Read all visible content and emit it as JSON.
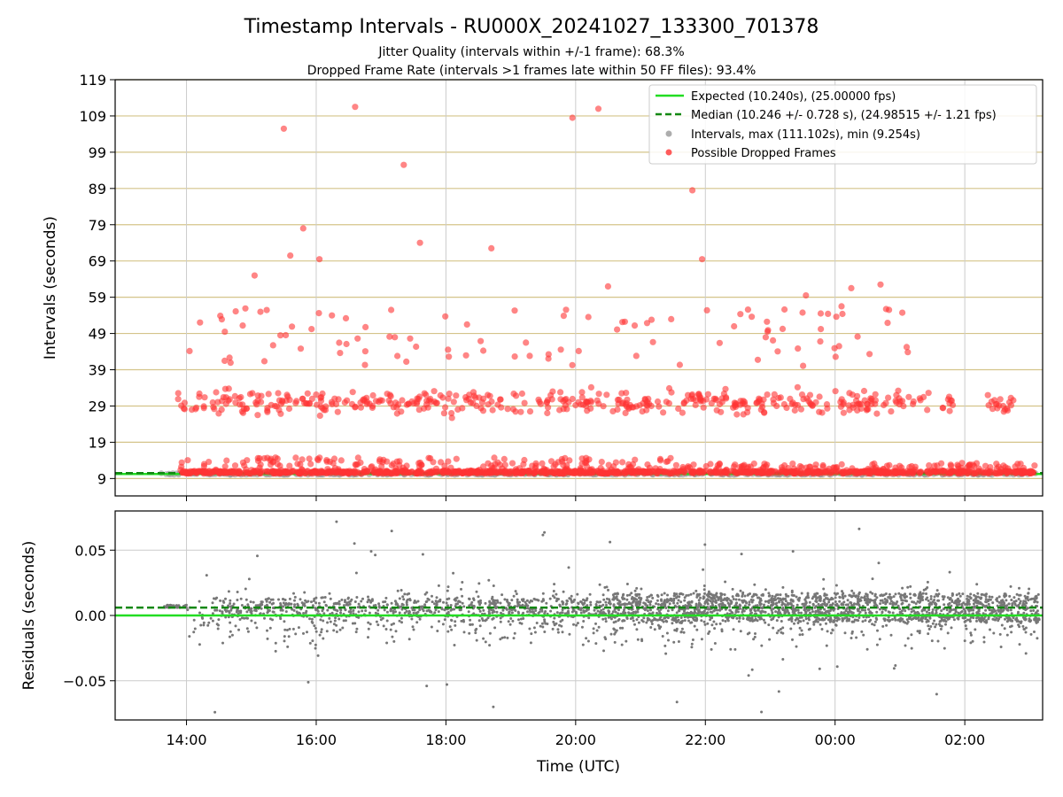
{
  "chart_data": [
    {
      "type": "scatter",
      "title": "Timestamp Intervals - RU000X_20241027_133300_701378",
      "subtitle_lines": [
        "Jitter Quality (intervals within +/-1 frame): 68.3%",
        "Dropped Frame Rate (intervals >1 frames late within 50 FF files): 93.4%"
      ],
      "xlabel": "",
      "ylabel": "Intervals (seconds)",
      "x_range_hours": [
        12.9,
        27.2
      ],
      "x_ticks": [
        "14:00",
        "16:00",
        "18:00",
        "20:00",
        "22:00",
        "00:00",
        "02:00"
      ],
      "x_tick_hours": [
        14,
        16,
        18,
        20,
        22,
        24,
        26
      ],
      "ylim": [
        4.2,
        119
      ],
      "y_ticks": [
        9,
        19,
        29,
        39,
        49,
        59,
        69,
        79,
        89,
        99,
        109,
        119
      ],
      "grid": "vertical and horizontal",
      "legend_position": "top-right",
      "expected_interval": 10.24,
      "median_interval": 10.246,
      "colors": {
        "expected": "#22dd22",
        "median": "#118811",
        "intervals": "#999999",
        "dropped": "#ff3333",
        "hgrid": "#d4c48a",
        "vgrid": "#cccccc"
      },
      "legend": [
        {
          "label": "Expected (10.240s), (25.00000 fps)",
          "style": "solid-line"
        },
        {
          "label": "Median (10.246 +/- 0.728 s), (24.98515 +/- 1.21 fps)",
          "style": "dashed-line"
        },
        {
          "label": "Intervals, max (111.102s), min (9.254s)",
          "style": "gray-dot"
        },
        {
          "label": "Possible Dropped Frames",
          "style": "red-dot"
        }
      ],
      "dropped_frames_sample": [
        {
          "x": 15.5,
          "y": 105.5
        },
        {
          "x": 16.6,
          "y": 111.5
        },
        {
          "x": 17.35,
          "y": 95.5
        },
        {
          "x": 19.95,
          "y": 108.5
        },
        {
          "x": 20.35,
          "y": 111.0
        },
        {
          "x": 21.8,
          "y": 88.5
        },
        {
          "x": 15.8,
          "y": 78.0
        },
        {
          "x": 15.6,
          "y": 70.5
        },
        {
          "x": 16.05,
          "y": 69.5
        },
        {
          "x": 17.6,
          "y": 74.0
        },
        {
          "x": 18.7,
          "y": 72.5
        },
        {
          "x": 21.95,
          "y": 69.5
        },
        {
          "x": 15.05,
          "y": 65.0
        },
        {
          "x": 20.5,
          "y": 62.0
        },
        {
          "x": 24.25,
          "y": 61.5
        },
        {
          "x": 24.7,
          "y": 62.5
        },
        {
          "x": 23.55,
          "y": 59.5
        },
        {
          "x": 24.1,
          "y": 56.5
        }
      ]
    },
    {
      "type": "scatter",
      "title": "",
      "xlabel": "Time (UTC)",
      "ylabel": "Residuals (seconds)",
      "x_range_hours": [
        12.9,
        27.2
      ],
      "x_ticks": [
        "14:00",
        "16:00",
        "18:00",
        "20:00",
        "22:00",
        "00:00",
        "02:00"
      ],
      "x_tick_hours": [
        14,
        16,
        18,
        20,
        22,
        24,
        26
      ],
      "ylim": [
        -0.08,
        0.08
      ],
      "y_ticks": [
        0.05,
        0.0,
        -0.05
      ],
      "y_tick_labels": [
        "0.05",
        "0.00",
        "−0.05"
      ],
      "expected_residual": 0.0,
      "median_residual": 0.006,
      "grid": "vertical and horizontal",
      "colors": {
        "points": "#777777",
        "expected": "#22dd22",
        "median": "#118811",
        "grid": "#cccccc"
      }
    }
  ]
}
